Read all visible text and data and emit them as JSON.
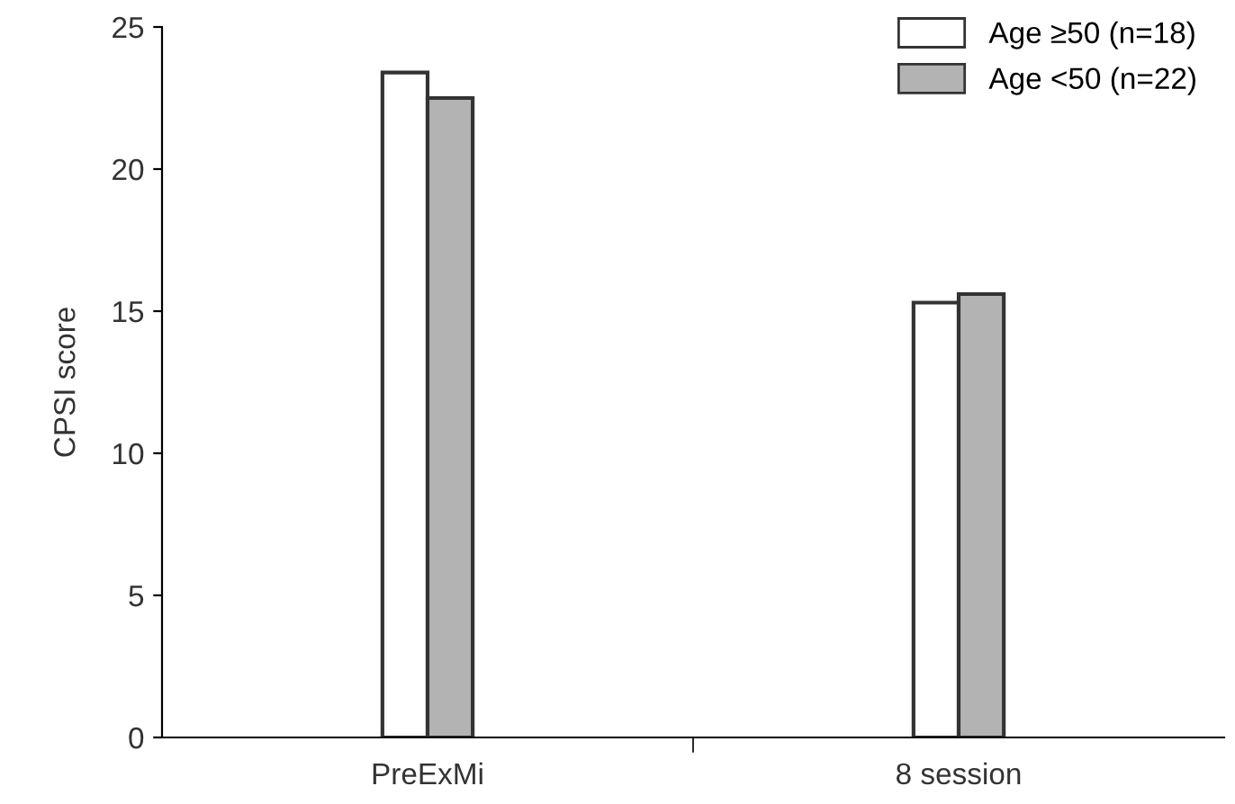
{
  "chart_data": {
    "type": "bar",
    "ylabel": "CPSI score",
    "categories": [
      "PreExMi",
      "8 session"
    ],
    "series": [
      {
        "name": "Age ≥50 (n=18)",
        "color": "#ffffff",
        "values": [
          23.4,
          15.3
        ]
      },
      {
        "name": "Age <50 (n=22)",
        "color": "#b3b3b3",
        "values": [
          22.5,
          15.6
        ]
      }
    ],
    "ylim": [
      0,
      25
    ],
    "yticks": [
      0,
      5,
      10,
      15,
      20,
      25
    ],
    "grid": false,
    "legend": "top right"
  }
}
